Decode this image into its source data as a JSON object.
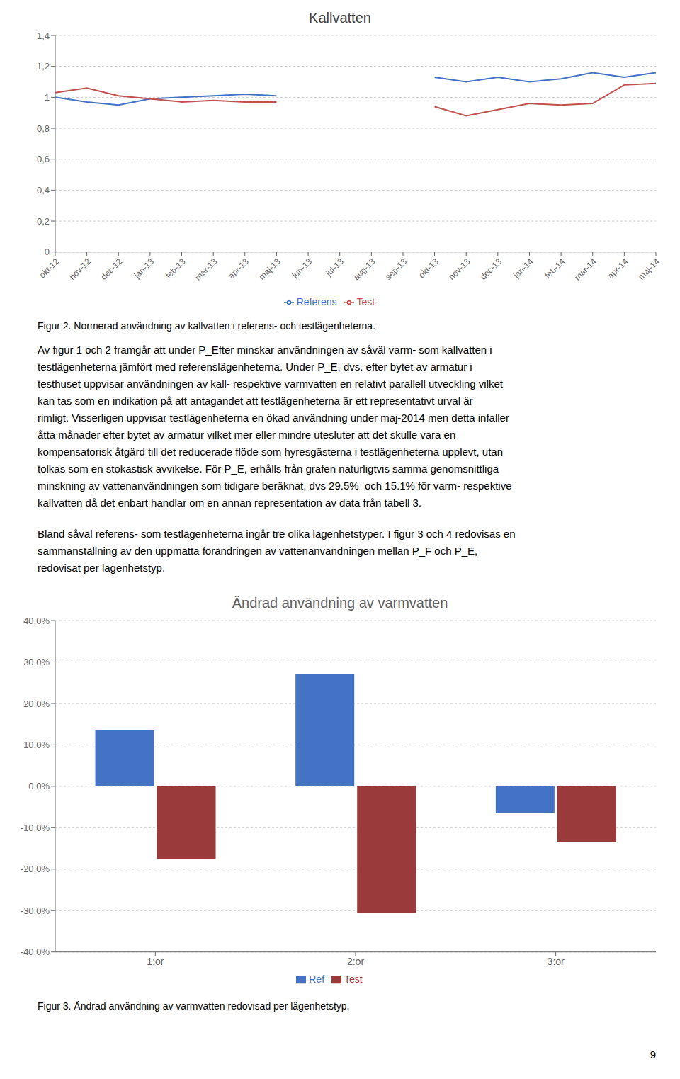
{
  "chart_data": [
    {
      "type": "line",
      "title": "Kallvatten",
      "categories": [
        "okt-12",
        "nov-12",
        "dec-12",
        "jan-13",
        "feb-13",
        "mar-13",
        "apr-13",
        "maj-13",
        "jun-13",
        "jul-13",
        "aug-13",
        "sep-13",
        "okt-13",
        "nov-13",
        "dec-13",
        "jan-14",
        "feb-14",
        "mar-14",
        "apr-14",
        "maj-14"
      ],
      "series": [
        {
          "name": "Referens",
          "color": "#4472C4",
          "values": [
            1.0,
            0.97,
            0.95,
            0.99,
            1.0,
            1.01,
            1.02,
            1.01,
            null,
            null,
            null,
            null,
            1.13,
            1.1,
            1.13,
            1.1,
            1.12,
            1.16,
            1.13,
            1.16
          ]
        },
        {
          "name": "Test",
          "color": "#C0504D",
          "values": [
            1.03,
            1.06,
            1.01,
            0.99,
            0.97,
            0.98,
            0.97,
            0.97,
            null,
            null,
            null,
            null,
            0.94,
            0.88,
            0.92,
            0.96,
            0.95,
            0.96,
            1.08,
            1.09
          ]
        }
      ],
      "ylim": [
        0,
        1.4
      ],
      "yticks": [
        0,
        {
          "value": 0.2,
          "label": "0,2"
        },
        {
          "value": 0.4,
          "label": "0,4"
        },
        {
          "value": 0.6,
          "label": "0,6"
        },
        {
          "value": 0.8,
          "label": "0,8"
        },
        1,
        {
          "value": 1.2,
          "label": "1,2"
        },
        {
          "value": 1.4,
          "label": "1,4"
        }
      ],
      "grid": true,
      "legend": "bottom",
      "annotations": [
        [
          "Figur 2. Normerad användning av kallvatten i referens- och testlägenheterna."
        ],
        [
          "Av figur 1 och 2 framgår att under P_Efter minskar användningen av såväl varm- som kallvatten i",
          "testlägenheterna jämfört med referenslägenheterna. Under P_E, dvs. efter bytet av armatur i",
          "testhuset uppvisar användningen av kall- respektive varmvatten en relativt parallell utveckling vilket",
          "kan tas som en indikation på att antagandet att testlägenheterna är ett representativt urval är",
          "rimligt. Visserligen uppvisar testlägenheterna en ökad användning under maj-2014 men detta infaller",
          "åtta månader efter bytet av armatur vilket mer eller mindre utesluter att det skulle vara en",
          "kompensatorisk åtgärd till det reducerade flöde som hyresgästerna i testlägenheterna upplevt, utan",
          "tolkas som en stokastisk avvikelse. För P_E, erhålls från grafen naturligtvis samma genomsnittliga",
          "minskning av vattenanvändningen som tidigare beräknat, dvs 29.5%  och 15.1% för varm- respektive",
          "kallvatten då det enbart handlar om en annan representation av data från tabell 3."
        ],
        [
          "Bland såväl referens- som testlägenheterna ingår tre olika lägenhetstyper. I figur 3 och 4 redovisas en",
          "sammanställning av den uppmätta förändringen av vattenanvändningen mellan P_F och P_E,",
          "redovisat per lägenhetstyp."
        ]
      ]
    },
    {
      "type": "bar",
      "title": "Ändrad användning av varmvatten",
      "categories": [
        "1:or",
        "2:or",
        "3:or"
      ],
      "series": [
        {
          "name": "Ref",
          "color": "#4472C4",
          "values": [
            0.135,
            0.27,
            -0.065
          ]
        },
        {
          "name": "Test",
          "color": "#9B3A3A",
          "values": [
            -0.175,
            -0.305,
            -0.135
          ]
        }
      ],
      "ylim": [
        -0.4,
        0.4
      ],
      "yticks": [
        {
          "value": -0.4,
          "label": "-40,0%"
        },
        {
          "value": -0.3,
          "label": "-30,0%"
        },
        {
          "value": -0.2,
          "label": "-20,0%"
        },
        {
          "value": -0.1,
          "label": "-10,0%"
        },
        {
          "value": 0.0,
          "label": "0,0%"
        },
        {
          "value": 0.1,
          "label": "10,0%"
        },
        {
          "value": 0.2,
          "label": "20,0%"
        },
        {
          "value": 0.3,
          "label": "30,0%"
        },
        {
          "value": 0.4,
          "label": "40,0%"
        }
      ],
      "grid": true,
      "legend": "bottom",
      "annotations": [
        [
          "Figur 3. Ändrad användning av varmvatten redovisad per lägenhetstyp."
        ],
        [
          "9"
        ]
      ]
    }
  ]
}
